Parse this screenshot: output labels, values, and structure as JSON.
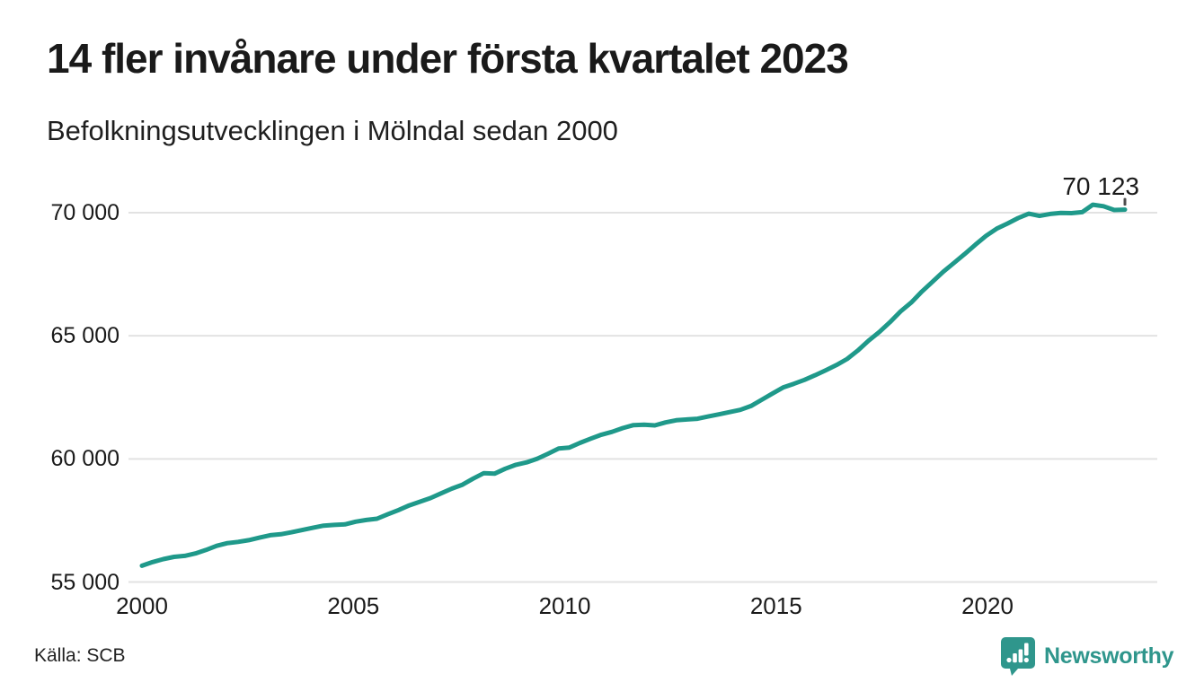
{
  "header": {
    "title": "14 fler invånare under första kvartalet 2023",
    "subtitle": "Befolkningsutvecklingen i Mölndal sedan 2000"
  },
  "annotation": {
    "last_value_label": "70 123"
  },
  "footer": {
    "source": "Källa: SCB",
    "brand": "Newsworthy"
  },
  "colors": {
    "line": "#1f998a",
    "grid": "#e2e2e2",
    "text": "#1a1a1a",
    "end_tick": "#4d4d4d",
    "brand_teal": "#2f968c"
  },
  "chart_data": {
    "type": "line",
    "title": "14 fler invånare under första kvartalet 2023",
    "subtitle": "Befolkningsutvecklingen i Mölndal sedan 2000",
    "source": "SCB",
    "unit": "invånare",
    "frequency": "quarterly",
    "x_start": 2000.0,
    "x_end": 2023.25,
    "ylim": [
      55000,
      70000
    ],
    "grid": "horizontal",
    "legend": "none",
    "yticks": {
      "values": [
        70000,
        65000,
        60000,
        55000
      ],
      "labels": [
        "70 000",
        "65 000",
        "60 000",
        "55 000"
      ]
    },
    "xticks": {
      "values": [
        2000,
        2005,
        2010,
        2015,
        2020
      ],
      "labels": [
        "2000",
        "2005",
        "2010",
        "2015",
        "2020"
      ]
    },
    "last_point": {
      "period": "2023 Q1",
      "value": 70123,
      "label": "70 123"
    },
    "series": [
      {
        "name": "Befolkning i Mölndal",
        "values": [
          55660,
          55810,
          55930,
          56020,
          56060,
          56160,
          56300,
          56470,
          56580,
          56630,
          56700,
          56800,
          56900,
          56940,
          57020,
          57110,
          57200,
          57290,
          57320,
          57340,
          57450,
          57520,
          57570,
          57750,
          57920,
          58110,
          58260,
          58410,
          58600,
          58790,
          58950,
          59200,
          59420,
          59400,
          59600,
          59760,
          59860,
          60010,
          60210,
          60420,
          60460,
          60650,
          60820,
          60980,
          61100,
          61250,
          61370,
          61390,
          61360,
          61480,
          61570,
          61600,
          61630,
          61720,
          61810,
          61900,
          61990,
          62150,
          62400,
          62650,
          62900,
          63050,
          63210,
          63400,
          63600,
          63810,
          64060,
          64400,
          64800,
          65150,
          65550,
          65990,
          66350,
          66800,
          67200,
          67600,
          67960,
          68320,
          68700,
          69060,
          69350,
          69560,
          69780,
          69960,
          69870,
          69950,
          69990,
          69980,
          70022,
          70326,
          70264,
          70109,
          70123
        ]
      }
    ]
  }
}
